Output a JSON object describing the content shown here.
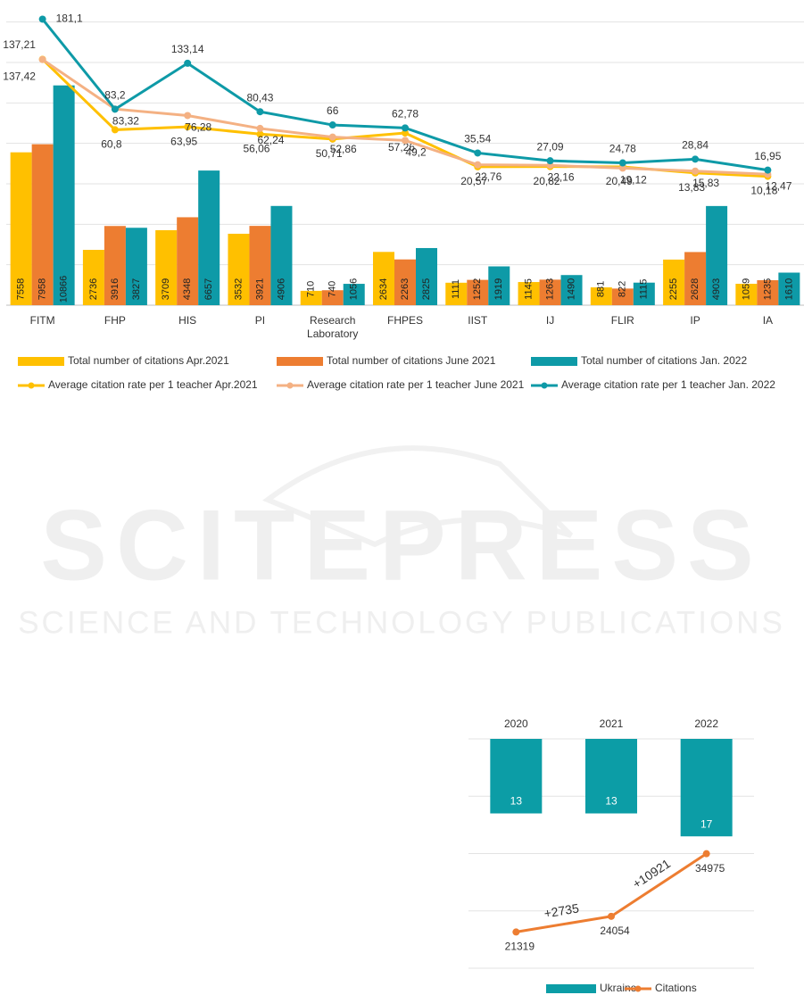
{
  "chart_data": [
    {
      "type": "combo",
      "legend": "bottom",
      "grid": true,
      "categories": [
        "FITM",
        "FHP",
        "HIS",
        "PI",
        "Research Laboratory",
        "FHPES",
        "IIST",
        "IJ",
        "FLIR",
        "IP",
        "IA"
      ],
      "ylim": [
        0,
        15000
      ],
      "yticks": [
        0,
        2000,
        4000,
        6000,
        8000,
        10000,
        12000,
        14000
      ],
      "y2lim": [
        -130,
        200
      ],
      "series": [
        {
          "name": "Total number of citations  Apr.2021",
          "type": "bar",
          "color": "#FFC000",
          "values": [
            7558,
            2736,
            3709,
            3532,
            710,
            2634,
            1111,
            1145,
            881,
            2255,
            1059
          ]
        },
        {
          "name": "Total number of citations  June 2021",
          "type": "bar",
          "color": "#ED7D31",
          "values": [
            7958,
            3916,
            4348,
            3921,
            740,
            2263,
            1252,
            1263,
            822,
            2628,
            1235
          ]
        },
        {
          "name": "Total number of citations  Jan. 2022",
          "type": "bar",
          "color": "#0E9AA7",
          "values": [
            10866,
            3827,
            6657,
            4906,
            1056,
            2825,
            1919,
            1490,
            1115,
            4903,
            1610
          ]
        },
        {
          "name": "Average citation rate per 1 teacher Apr.2021",
          "type": "line",
          "axis": "y2",
          "color": "#FFC000",
          "values": [
            137.42,
            60.8,
            63.95,
            56.06,
            50.71,
            57.26,
            20.57,
            20.82,
            20.49,
            13.83,
            10.18
          ],
          "value_labels": [
            "137,42",
            "60,8",
            "63,95",
            "56,06",
            "50,71",
            "57,26",
            "20,57",
            "20,82",
            "20,49",
            "13,83",
            "10,18"
          ]
        },
        {
          "name": "Average citation rate per 1 teacher June 2021",
          "type": "line",
          "axis": "y2",
          "color": "#F4B183",
          "values": [
            137.21,
            83.32,
            76.28,
            62.24,
            52.86,
            49.2,
            22.76,
            22.16,
            19.12,
            15.83,
            12.47
          ],
          "value_labels": [
            "137,21",
            "83,32",
            "76,28",
            "62,24",
            "52,86",
            "49,2",
            "22,76",
            "22,16",
            "19,12",
            "15,83",
            "12,47"
          ]
        },
        {
          "name": "Average citation rate per 1 teacher Jan. 2022",
          "type": "line",
          "axis": "y2",
          "color": "#0E9AA7",
          "values": [
            181.1,
            83.2,
            133.14,
            80.43,
            66,
            62.78,
            35.54,
            27.09,
            24.78,
            28.84,
            16.95
          ],
          "value_labels": [
            "181,1",
            "83,2",
            "133,14",
            "80,43",
            "66",
            "62,78",
            "35,54",
            "27,09",
            "24,78",
            "28,84",
            "16,95"
          ]
        }
      ]
    },
    {
      "type": "combo",
      "legend": "bottom",
      "grid": true,
      "x_axis_position": "top",
      "y_reverse": true,
      "categories": [
        "2020",
        "2021",
        "2022"
      ],
      "ylim": [
        0,
        40
      ],
      "yticks": [
        0,
        10,
        20,
        30,
        40
      ],
      "y2lim": [
        15000,
        55000
      ],
      "series": [
        {
          "name": "Ukraine",
          "type": "bar",
          "color": "#0C9DA6",
          "values": [
            13,
            13,
            17
          ]
        },
        {
          "name": "Citations",
          "type": "line",
          "axis": "y2",
          "color": "#ED7D31",
          "values": [
            21319,
            24054,
            34975
          ]
        }
      ],
      "annotations": [
        "+2735",
        "+10921"
      ]
    }
  ],
  "watermark": {
    "title": "SCITEPRESS",
    "subtitle": "SCIENCE AND TECHNOLOGY PUBLICATIONS"
  }
}
